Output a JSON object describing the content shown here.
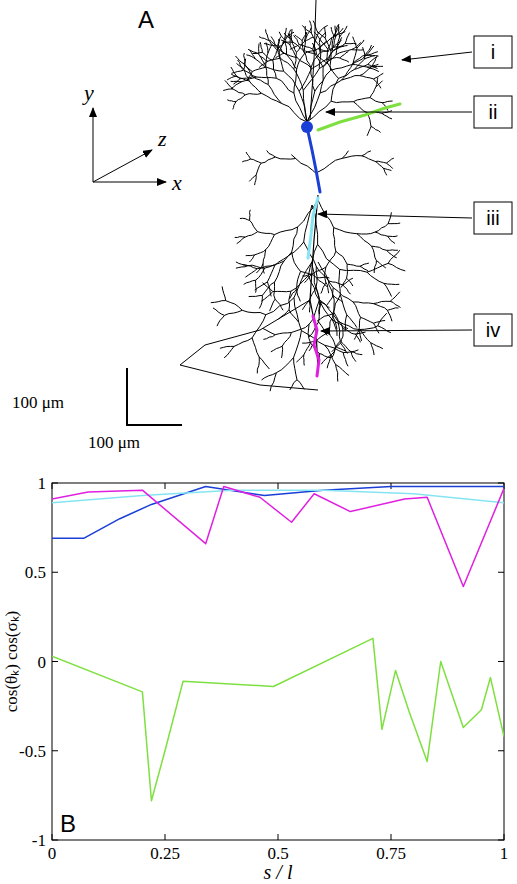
{
  "panel_labels": [
    "A",
    "B"
  ],
  "diagram": {
    "axes_labels": [
      "y",
      "z",
      "x"
    ],
    "segments": [
      {
        "label": "i",
        "color": "#7ee040"
      },
      {
        "label": "ii",
        "color": "#1a3fd6"
      },
      {
        "label": "iii",
        "color": "#86e4f2"
      },
      {
        "label": "iv",
        "color": "#e020e0"
      }
    ],
    "scale_bar": {
      "vertical": "100 μm",
      "horizontal": "100 μm"
    }
  },
  "chart_data": {
    "type": "line",
    "x_label": "s / l",
    "y_label": "cos(θₖ) cos(σₖ)",
    "xlim": [
      0,
      1
    ],
    "ylim": [
      -1,
      1
    ],
    "xticks": [
      0,
      0.25,
      0.5,
      0.75,
      1
    ],
    "yticks": [
      -1,
      -0.5,
      0,
      0.5,
      1
    ],
    "series": [
      {
        "color": "#7ee040",
        "x": [
          0,
          0.2,
          0.22,
          0.25,
          0.29,
          0.49,
          0.71,
          0.73,
          0.76,
          0.79,
          0.83,
          0.86,
          0.91,
          0.95,
          0.97,
          1
        ],
        "values": [
          0.03,
          -0.17,
          -0.78,
          -0.5,
          -0.11,
          -0.14,
          0.13,
          -0.38,
          -0.05,
          -0.28,
          -0.56,
          0.0,
          -0.37,
          -0.27,
          -0.09,
          -0.42
        ]
      },
      {
        "color": "#1a3fd6",
        "x": [
          0,
          0.07,
          0.15,
          0.22,
          0.34,
          0.47,
          0.6,
          0.75,
          1
        ],
        "values": [
          0.69,
          0.69,
          0.8,
          0.88,
          0.98,
          0.93,
          0.96,
          0.98,
          0.98
        ]
      },
      {
        "color": "#86e4f2",
        "x": [
          0,
          0.2,
          0.4,
          0.6,
          0.8,
          1
        ],
        "values": [
          0.89,
          0.93,
          0.96,
          0.96,
          0.94,
          0.89
        ]
      },
      {
        "color": "#e020e0",
        "x": [
          0,
          0.08,
          0.2,
          0.34,
          0.38,
          0.46,
          0.53,
          0.58,
          0.66,
          0.78,
          0.83,
          0.91,
          1
        ],
        "values": [
          0.91,
          0.95,
          0.96,
          0.66,
          0.98,
          0.92,
          0.78,
          0.94,
          0.84,
          0.91,
          0.92,
          0.42,
          0.97
        ]
      }
    ]
  }
}
